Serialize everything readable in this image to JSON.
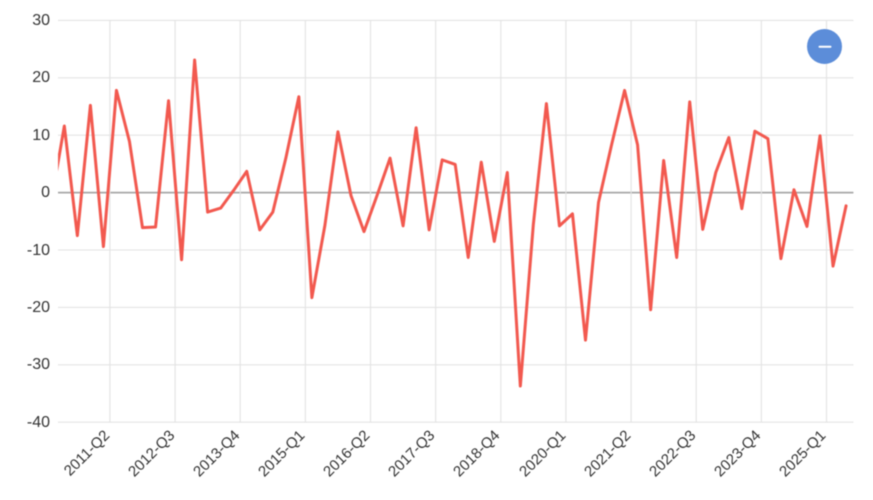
{
  "chart_data": {
    "type": "line",
    "title": "",
    "xlabel": "",
    "ylabel": "",
    "categories": [
      "2010-Q1",
      "2010-Q2",
      "2010-Q3",
      "2010-Q4",
      "2011-Q1",
      "2011-Q2",
      "2011-Q3",
      "2011-Q4",
      "2012-Q1",
      "2012-Q2",
      "2012-Q3",
      "2012-Q4",
      "2013-Q1",
      "2013-Q2",
      "2013-Q3",
      "2013-Q4",
      "2014-Q1",
      "2014-Q2",
      "2014-Q3",
      "2014-Q4",
      "2015-Q1",
      "2015-Q2",
      "2015-Q3",
      "2015-Q4",
      "2016-Q1",
      "2016-Q2",
      "2016-Q3",
      "2016-Q4",
      "2017-Q1",
      "2017-Q2",
      "2017-Q3",
      "2017-Q4",
      "2018-Q1",
      "2018-Q2",
      "2018-Q3",
      "2018-Q4",
      "2019-Q1",
      "2019-Q2",
      "2019-Q3",
      "2019-Q4",
      "2020-Q1",
      "2020-Q2",
      "2020-Q3",
      "2020-Q4",
      "2021-Q1",
      "2021-Q2",
      "2021-Q3",
      "2021-Q4",
      "2022-Q1",
      "2022-Q2",
      "2022-Q3",
      "2022-Q4",
      "2023-Q1",
      "2023-Q2",
      "2023-Q3",
      "2023-Q4",
      "2024-Q1",
      "2024-Q2",
      "2024-Q3",
      "2024-Q4",
      "2025-Q1",
      "2025-Q2"
    ],
    "values": [
      -1.6,
      11.6,
      -7.5,
      15.2,
      -9.4,
      17.8,
      8.9,
      -6.1,
      -6.0,
      16.0,
      -11.7,
      23.1,
      -3.4,
      -2.7,
      0.4,
      3.7,
      -6.5,
      -3.4,
      6.0,
      16.7,
      -18.3,
      -5.7,
      10.6,
      -0.5,
      -6.8,
      -0.5,
      6.0,
      -5.8,
      11.3,
      -6.5,
      5.7,
      4.9,
      -11.3,
      5.3,
      -8.5,
      3.5,
      -33.7,
      -5.5,
      15.5,
      -5.8,
      -3.7,
      -25.7,
      -1.7,
      8.3,
      17.8,
      8.3,
      -20.4,
      5.6,
      -11.3,
      15.8,
      -6.4,
      3.5,
      9.6,
      -2.8,
      10.7,
      9.4,
      -11.5,
      0.5,
      -5.9,
      9.9,
      -12.8,
      -2.3
    ],
    "x_tick_labels": [
      "2011-Q2",
      "2012-Q3",
      "2013-Q4",
      "2015-Q1",
      "2016-Q2",
      "2017-Q3",
      "2018-Q4",
      "2020-Q1",
      "2021-Q2",
      "2022-Q3",
      "2023-Q4",
      "2025-Q1"
    ],
    "y_ticks": [
      30,
      20,
      10,
      0,
      -10,
      -20,
      -30,
      -40
    ],
    "ylim": [
      -40,
      30
    ],
    "grid": "on",
    "legend": "none",
    "colors": {
      "series": "#f2594f",
      "grid": "#e3e3e3",
      "zero_line": "#a7a7a7",
      "tick_label": "#333333"
    }
  },
  "controls": {
    "collapse_button": {
      "label": "",
      "icon": "minus-icon",
      "color": "#5c8dd9"
    }
  }
}
